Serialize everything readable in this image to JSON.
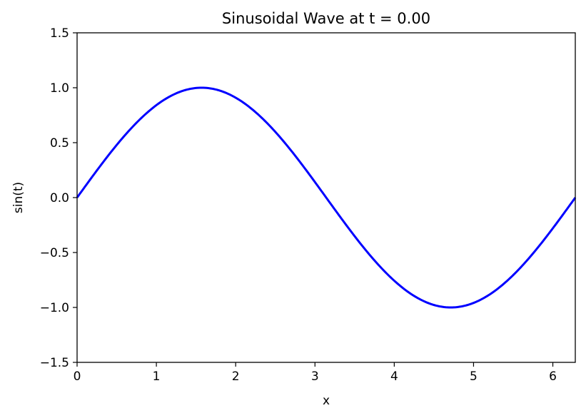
{
  "chart_data": {
    "type": "line",
    "title": "Sinusoidal Wave at t = 0.00",
    "xlabel": "x",
    "ylabel": "sin(t)",
    "xlim": [
      0,
      6.283185307
    ],
    "ylim": [
      -1.5,
      1.5
    ],
    "x_ticks": [
      0,
      1,
      2,
      3,
      4,
      5,
      6
    ],
    "x_tick_labels": [
      "0",
      "1",
      "2",
      "3",
      "4",
      "5",
      "6"
    ],
    "y_ticks": [
      -1.5,
      -1.0,
      -0.5,
      0.0,
      0.5,
      1.0,
      1.5
    ],
    "y_tick_labels": [
      "−1.5",
      "−1.0",
      "−0.5",
      "0.0",
      "0.5",
      "1.0",
      "1.5"
    ],
    "grid": false,
    "series": [
      {
        "color": "#0000ff",
        "x": [
          0,
          0.25,
          0.5,
          0.75,
          1.0,
          1.25,
          1.5,
          1.5708,
          1.75,
          2.0,
          2.25,
          2.5,
          2.75,
          3.0,
          3.1416,
          3.25,
          3.5,
          3.75,
          4.0,
          4.25,
          4.5,
          4.7124,
          4.75,
          5.0,
          5.25,
          5.5,
          5.75,
          6.0,
          6.2832
        ],
        "values": [
          0.0,
          0.247,
          0.479,
          0.682,
          0.841,
          0.949,
          0.997,
          1.0,
          0.984,
          0.909,
          0.778,
          0.598,
          0.382,
          0.141,
          0.0,
          -0.108,
          -0.351,
          -0.572,
          -0.757,
          -0.895,
          -0.978,
          -1.0,
          -0.999,
          -0.959,
          -0.859,
          -0.706,
          -0.508,
          -0.279,
          0.0
        ]
      }
    ]
  }
}
